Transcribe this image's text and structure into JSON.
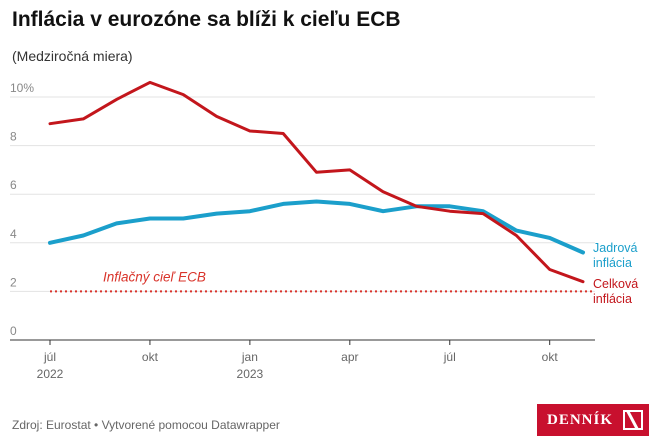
{
  "header": {
    "title": "Inflácia v eurozóne sa blíži k cieľu ECB",
    "subtitle": "(Medziročná miera)"
  },
  "footer": {
    "source": "Zdroj: Eurostat • Vytvorené pomocou Datawrapper"
  },
  "logo": {
    "text": "DENNÍK"
  },
  "chart_data": {
    "type": "line",
    "x": [
      "2022-07",
      "2022-08",
      "2022-09",
      "2022-10",
      "2022-11",
      "2022-12",
      "2023-01",
      "2023-02",
      "2023-03",
      "2023-04",
      "2023-05",
      "2023-06",
      "2023-07",
      "2023-08",
      "2023-09",
      "2023-10",
      "2023-11"
    ],
    "ylim": [
      0,
      10
    ],
    "yticks": [
      {
        "value": 0,
        "label": "0"
      },
      {
        "value": 2,
        "label": "2"
      },
      {
        "value": 4,
        "label": "4"
      },
      {
        "value": 6,
        "label": "6"
      },
      {
        "value": 8,
        "label": "8"
      },
      {
        "value": 10,
        "label": "10%"
      }
    ],
    "xticks": [
      {
        "x": "2022-07",
        "label": "júl",
        "label2": "2022"
      },
      {
        "x": "2022-10",
        "label": "okt",
        "label2": ""
      },
      {
        "x": "2023-01",
        "label": "jan",
        "label2": "2023"
      },
      {
        "x": "2023-04",
        "label": "apr",
        "label2": ""
      },
      {
        "x": "2023-07",
        "label": "júl",
        "label2": ""
      },
      {
        "x": "2023-10",
        "label": "okt",
        "label2": ""
      }
    ],
    "grid": true,
    "series": [
      {
        "name": "Jadrová inflácia",
        "label_lines": [
          "Jadrová",
          "inflácia"
        ],
        "color": "#1b9fcb",
        "values": [
          4.0,
          4.3,
          4.8,
          5.0,
          5.0,
          5.2,
          5.3,
          5.6,
          5.7,
          5.6,
          5.3,
          5.5,
          5.5,
          5.3,
          4.5,
          4.2,
          3.6
        ]
      },
      {
        "name": "Celková inflácia",
        "label_lines": [
          "Celková",
          "inflácia"
        ],
        "color": "#c3161c",
        "values": [
          8.9,
          9.1,
          9.9,
          10.6,
          10.1,
          9.2,
          8.6,
          8.5,
          6.9,
          7.0,
          6.1,
          5.5,
          5.3,
          5.2,
          4.3,
          2.9,
          2.4
        ]
      }
    ],
    "reference_line": {
      "value": 2,
      "label": "Inflačný cieľ ECB",
      "color": "#d9342b"
    }
  }
}
